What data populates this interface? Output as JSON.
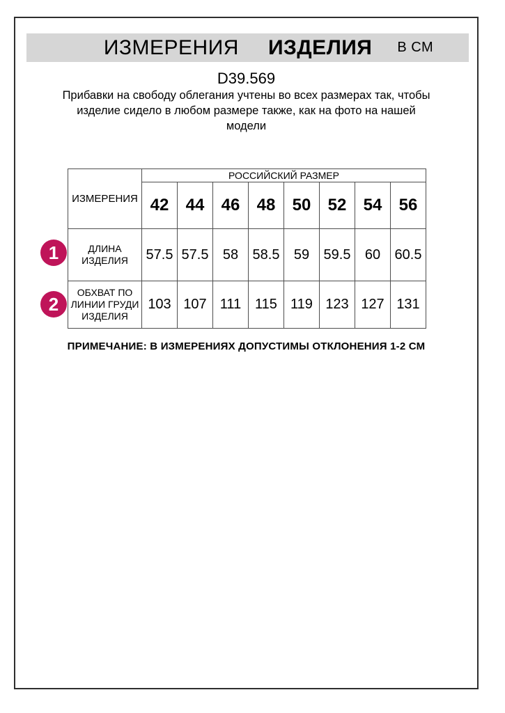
{
  "header": {
    "title_part1": "ИЗМЕРЕНИЯ",
    "title_part2": "ИЗДЕЛИЯ",
    "unit": "В СМ"
  },
  "article_code": "D39.569",
  "description": {
    "line1": "Прибавки на свободу облегания учтены во всех размерах так, чтобы",
    "line2": "изделие сидело в любом размере также, как на фото на нашей",
    "line3": "модели"
  },
  "table": {
    "corner_header": "ИЗМЕРЕНИЯ",
    "size_group_header": "РОССИЙСКИЙ РАЗМЕР",
    "sizes": [
      "42",
      "44",
      "46",
      "48",
      "50",
      "52",
      "54",
      "56"
    ],
    "rows": [
      {
        "marker": "1",
        "label": "ДЛИНА ИЗДЕЛИЯ",
        "values": [
          "57.5",
          "57.5",
          "58",
          "58.5",
          "59",
          "59.5",
          "60",
          "60.5"
        ]
      },
      {
        "marker": "2",
        "label": "ОБХВАТ ПО ЛИНИИ ГРУДИ ИЗДЕЛИЯ",
        "values": [
          "103",
          "107",
          "111",
          "115",
          "119",
          "123",
          "127",
          "131"
        ]
      }
    ]
  },
  "note": "ПРИМЕЧАНИЕ: В ИЗМЕРЕНИЯХ ДОПУСТИМЫ ОТКЛОНЕНИЯ 1-2 СМ",
  "colors": {
    "accent_marker": "#bf1459",
    "header_bar_background": "#d6d6d6",
    "table_border": "#4d4d4d",
    "page_border": "#2e2e2e",
    "text": "#000000"
  }
}
